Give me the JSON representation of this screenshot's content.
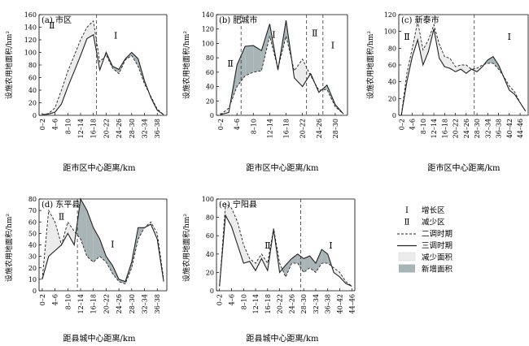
{
  "chart_data": [
    {
      "type": "line",
      "title": "(a) 市区",
      "xlabel": "距市区中心距离/km",
      "ylabel": "设施农用地面积/hm²",
      "ylim": [
        0,
        160
      ],
      "yticks": [
        "0",
        "20",
        "40",
        "60",
        "80",
        "100",
        "120",
        "140",
        "160"
      ],
      "x_categories": [
        "0–2",
        "2–4",
        "4–6",
        "6–8",
        "8–10",
        "10–12",
        "12–14",
        "14–16",
        "16–18",
        "18–20",
        "20–22",
        "22–24",
        "24–26",
        "26–28",
        "28–30",
        "30–32",
        "32–34",
        "34–36",
        "36–38",
        "38–40"
      ],
      "x_tick_labels": [
        "0–2",
        "4–6",
        "8–10",
        "12–14",
        "16–18",
        "20–22",
        "24–26",
        "28–30",
        "32–34",
        "36–38"
      ],
      "boundary_x": 8.5,
      "zones": [
        {
          "label": "Ⅱ",
          "x": 1.5,
          "y": 138
        },
        {
          "label": "Ⅰ",
          "x": 11.5,
          "y": 122
        }
      ],
      "series": [
        {
          "name": "二调时期",
          "style": "dashed",
          "values": [
            1,
            3,
            12,
            40,
            70,
            95,
            120,
            140,
            150,
            85,
            96,
            75,
            66,
            88,
            95,
            78,
            50,
            30,
            10,
            1
          ]
        },
        {
          "name": "三调时期",
          "style": "solid",
          "values": [
            1,
            2,
            5,
            18,
            45,
            70,
            95,
            122,
            128,
            72,
            100,
            78,
            73,
            90,
            100,
            90,
            55,
            28,
            8,
            1
          ]
        }
      ]
    },
    {
      "type": "line",
      "title": "(b) 肥城市",
      "xlabel": "距市区中心距离/km",
      "ylabel": "设施农用地面积/hm²",
      "ylim": [
        0,
        140
      ],
      "yticks": [
        "0",
        "20",
        "40",
        "60",
        "80",
        "100",
        "120",
        "140"
      ],
      "x_categories": [
        "0–2",
        "2–4",
        "4–6",
        "6–8",
        "8–10",
        "10–12",
        "12–14",
        "14–16",
        "16–18",
        "18–20",
        "20–22",
        "22–24",
        "24–26",
        "26–28",
        "28–30",
        "30–32"
      ],
      "x_tick_labels": [
        "0–2",
        "4–6",
        "8–10",
        "12–14",
        "16–18",
        "20–22",
        "24–26",
        "28–30"
      ],
      "boundary_x": [
        2.5,
        10.5,
        12.5
      ],
      "zones": [
        {
          "label": "Ⅱ",
          "x": 1.2,
          "y": 68
        },
        {
          "label": "Ⅰ",
          "x": 6.5,
          "y": 108
        },
        {
          "label": "Ⅱ",
          "x": 11.5,
          "y": 110
        },
        {
          "label": "Ⅰ",
          "x": 13.7,
          "y": 93
        }
      ],
      "series": [
        {
          "name": "二调时期",
          "style": "dashed",
          "values": [
            1,
            10,
            40,
            55,
            60,
            62,
            110,
            65,
            110,
            62,
            78,
            55,
            35,
            36,
            12,
            2
          ]
        },
        {
          "name": "三调时期",
          "style": "solid",
          "values": [
            1,
            4,
            70,
            96,
            97,
            90,
            127,
            63,
            132,
            52,
            40,
            58,
            32,
            42,
            15,
            2
          ]
        }
      ]
    },
    {
      "type": "line",
      "title": "(c) 新泰市",
      "xlabel": "距市区中心距离/km",
      "ylabel": "设施农用地面积/hm²",
      "ylim": [
        0,
        120
      ],
      "yticks": [
        "0",
        "20",
        "40",
        "60",
        "80",
        "100",
        "120"
      ],
      "x_categories": [
        "0–2",
        "2–4",
        "4–6",
        "6–8",
        "8–10",
        "10–12",
        "12–14",
        "14–16",
        "16–18",
        "18–20",
        "20–22",
        "22–24",
        "24–26",
        "26–28",
        "28–30",
        "30–32",
        "32–34",
        "34–36",
        "36–38",
        "38–40",
        "40–42",
        "42–44",
        "44–46",
        "46–48"
      ],
      "x_tick_labels": [
        "0–2",
        "4–6",
        "8–10",
        "12–14",
        "16–18",
        "20–22",
        "24–26",
        "28–30",
        "32–34",
        "36–38",
        "40–42",
        "44–46"
      ],
      "boundary_x": 13.5,
      "zones": [
        {
          "label": "Ⅱ",
          "x": 1.0,
          "y": 90
        },
        {
          "label": "Ⅰ",
          "x": 20.0,
          "y": 90
        }
      ],
      "series": [
        {
          "name": "二调时期",
          "style": "dashed",
          "values": [
            1,
            50,
            80,
            112,
            78,
            90,
            108,
            85,
            70,
            68,
            58,
            60,
            60,
            55,
            56,
            60,
            62,
            62,
            55,
            46,
            35,
            28,
            15,
            5
          ]
        },
        {
          "name": "三调时期",
          "style": "solid",
          "values": [
            1,
            40,
            70,
            90,
            60,
            76,
            103,
            68,
            58,
            56,
            52,
            55,
            50,
            55,
            52,
            58,
            66,
            70,
            60,
            45,
            30,
            25,
            15,
            5
          ]
        }
      ]
    },
    {
      "type": "line",
      "title": "(d) 东平县",
      "xlabel": "距县城中心距离/km",
      "ylabel": "设施农用地面积/hm²",
      "ylim": [
        0,
        80
      ],
      "yticks": [
        "0",
        "10",
        "20",
        "30",
        "40",
        "50",
        "60",
        "70",
        "80"
      ],
      "x_categories": [
        "0–2",
        "2–4",
        "4–6",
        "6–8",
        "8–10",
        "10–12",
        "12–14",
        "14–16",
        "16–18",
        "18–20",
        "20–22",
        "22–24",
        "24–26",
        "26–28",
        "28–30",
        "30–32",
        "32–34",
        "34–36",
        "36–38",
        "38–40"
      ],
      "x_tick_labels": [
        "0–2",
        "4–6",
        "8–10",
        "12–14",
        "16–18",
        "20–22",
        "24–26",
        "28–30",
        "32–34",
        "36–38"
      ],
      "boundary_x": 5.5,
      "zones": [
        {
          "label": "Ⅱ",
          "x": 3.0,
          "y": 62
        },
        {
          "label": "Ⅰ",
          "x": 11.0,
          "y": 38
        }
      ],
      "series": [
        {
          "name": "二调时期",
          "style": "dashed",
          "values": [
            10,
            70,
            60,
            40,
            60,
            52,
            45,
            30,
            25,
            30,
            25,
            15,
            8,
            6,
            20,
            45,
            55,
            60,
            50,
            10
          ]
        },
        {
          "name": "三调时期",
          "style": "solid",
          "values": [
            10,
            30,
            35,
            40,
            50,
            40,
            80,
            70,
            55,
            45,
            30,
            22,
            10,
            8,
            25,
            55,
            55,
            58,
            45,
            8
          ]
        }
      ]
    },
    {
      "type": "line",
      "title": "(e) 宁阳县",
      "xlabel": "距县城中心距离/km",
      "ylabel": "设施农用地面积/hm²",
      "ylim": [
        0,
        100
      ],
      "yticks": [
        "0",
        "20",
        "40",
        "60",
        "80",
        "100"
      ],
      "x_categories": [
        "0–2",
        "2–4",
        "4–6",
        "6–8",
        "8–10",
        "10–12",
        "12–14",
        "14–16",
        "16–18",
        "18–20",
        "20–22",
        "22–24",
        "24–26",
        "26–28",
        "28–30",
        "30–32",
        "32–34",
        "34–36",
        "36–38",
        "38–40",
        "40–42",
        "42–44",
        "44–46"
      ],
      "x_tick_labels": [
        "0–2",
        "4–6",
        "8–10",
        "12–14",
        "16–18",
        "20–22",
        "24–26",
        "28–30",
        "32–34",
        "36–38",
        "40–42",
        "44–46"
      ],
      "boundary_x": 13.5,
      "zones": [
        {
          "label": "Ⅱ",
          "x": 8.0,
          "y": 46
        },
        {
          "label": "Ⅰ",
          "x": 18.5,
          "y": 46
        }
      ],
      "series": [
        {
          "name": "二调时期",
          "style": "dashed",
          "values": [
            5,
            95,
            90,
            75,
            50,
            35,
            30,
            40,
            30,
            68,
            30,
            15,
            30,
            30,
            20,
            25,
            20,
            30,
            30,
            25,
            20,
            10,
            5
          ]
        },
        {
          "name": "三调时期",
          "style": "solid",
          "values": [
            5,
            82,
            70,
            50,
            30,
            32,
            22,
            35,
            22,
            67,
            20,
            28,
            35,
            40,
            35,
            38,
            30,
            45,
            40,
            20,
            15,
            8,
            5
          ]
        }
      ]
    }
  ],
  "legend": {
    "items": [
      {
        "symbol": "Ⅰ",
        "label": "增长区"
      },
      {
        "symbol": "Ⅱ",
        "label": "减少区"
      },
      {
        "symbol": "dashed",
        "label": "二调时期"
      },
      {
        "symbol": "solid",
        "label": "三调时期"
      },
      {
        "symbol": "light-fill",
        "label": "减少面积"
      },
      {
        "symbol": "dark-fill",
        "label": "新增面积"
      }
    ]
  },
  "colors": {
    "decrease_fill": "#ececec",
    "increase_fill": "#a9b4b6",
    "line": "#222222"
  }
}
